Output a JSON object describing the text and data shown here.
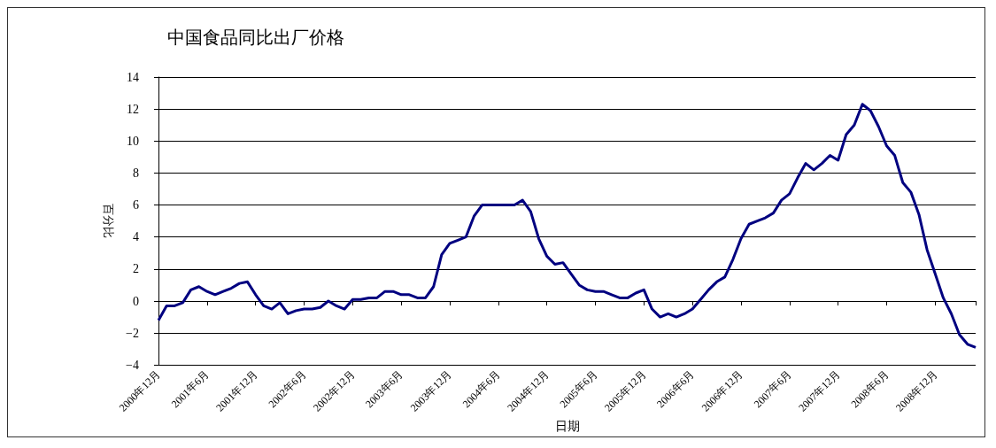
{
  "chart_data": {
    "type": "line",
    "title": "中国食品同比出厂价格",
    "xlabel": "日期",
    "ylabel": "百分比",
    "categories": [
      "2000年12月",
      null,
      null,
      null,
      null,
      null,
      "2001年6月",
      null,
      null,
      null,
      null,
      null,
      "2001年12月",
      null,
      null,
      null,
      null,
      null,
      "2002年6月",
      null,
      null,
      null,
      null,
      null,
      "2002年12月",
      null,
      null,
      null,
      null,
      null,
      "2003年6月",
      null,
      null,
      null,
      null,
      null,
      "2003年12月",
      null,
      null,
      null,
      null,
      null,
      "2004年6月",
      null,
      null,
      null,
      null,
      null,
      "2004年12月",
      null,
      null,
      null,
      null,
      null,
      "2005年6月",
      null,
      null,
      null,
      null,
      null,
      "2005年12月",
      null,
      null,
      null,
      null,
      null,
      "2006年6月",
      null,
      null,
      null,
      null,
      null,
      "2006年12月",
      null,
      null,
      null,
      null,
      null,
      "2007年6月",
      null,
      null,
      null,
      null,
      null,
      "2007年12月",
      null,
      null,
      null,
      null,
      null,
      "2008年6月",
      null,
      null,
      null,
      null,
      null,
      "2008年12月",
      null,
      null,
      null,
      null,
      null
    ],
    "series": [
      {
        "color": "#000080",
        "values": [
          -1.2,
          -0.3,
          -0.3,
          -0.1,
          0.7,
          0.9,
          0.6,
          0.4,
          0.6,
          0.8,
          1.1,
          1.2,
          0.4,
          -0.3,
          -0.5,
          -0.1,
          -0.8,
          -0.6,
          -0.5,
          -0.5,
          -0.4,
          0,
          -0.3,
          -0.5,
          0.1,
          0.1,
          0.2,
          0.2,
          0.6,
          0.6,
          0.4,
          0.4,
          0.2,
          0.2,
          0.9,
          2.9,
          3.6,
          3.8,
          4,
          5.3,
          6,
          6,
          6,
          6,
          6,
          6.3,
          5.6,
          3.9,
          2.8,
          2.3,
          2.4,
          1.7,
          1,
          0.7,
          0.6,
          0.6,
          0.4,
          0.2,
          0.2,
          0.5,
          0.7,
          -0.5,
          -1,
          -0.8,
          -1,
          -0.8,
          -0.5,
          0.1,
          0.7,
          1.2,
          1.5,
          2.6,
          3.9,
          4.8,
          5,
          5.2,
          5.5,
          6.3,
          6.7,
          7.7,
          8.6,
          8.2,
          8.6,
          9.1,
          8.8,
          10.4,
          11,
          12.3,
          11.9,
          10.9,
          9.7,
          9.1,
          7.4,
          6.8,
          5.4,
          3.2,
          1.7,
          0.2,
          -0.8,
          -2.1,
          -2.7,
          -2.9
        ]
      }
    ],
    "ylim": [
      -4,
      14
    ],
    "yticks": [
      -4,
      -2,
      0,
      2,
      4,
      6,
      8,
      10,
      12,
      14
    ],
    "grid": "y",
    "line_style": "solid",
    "marker": "none"
  }
}
